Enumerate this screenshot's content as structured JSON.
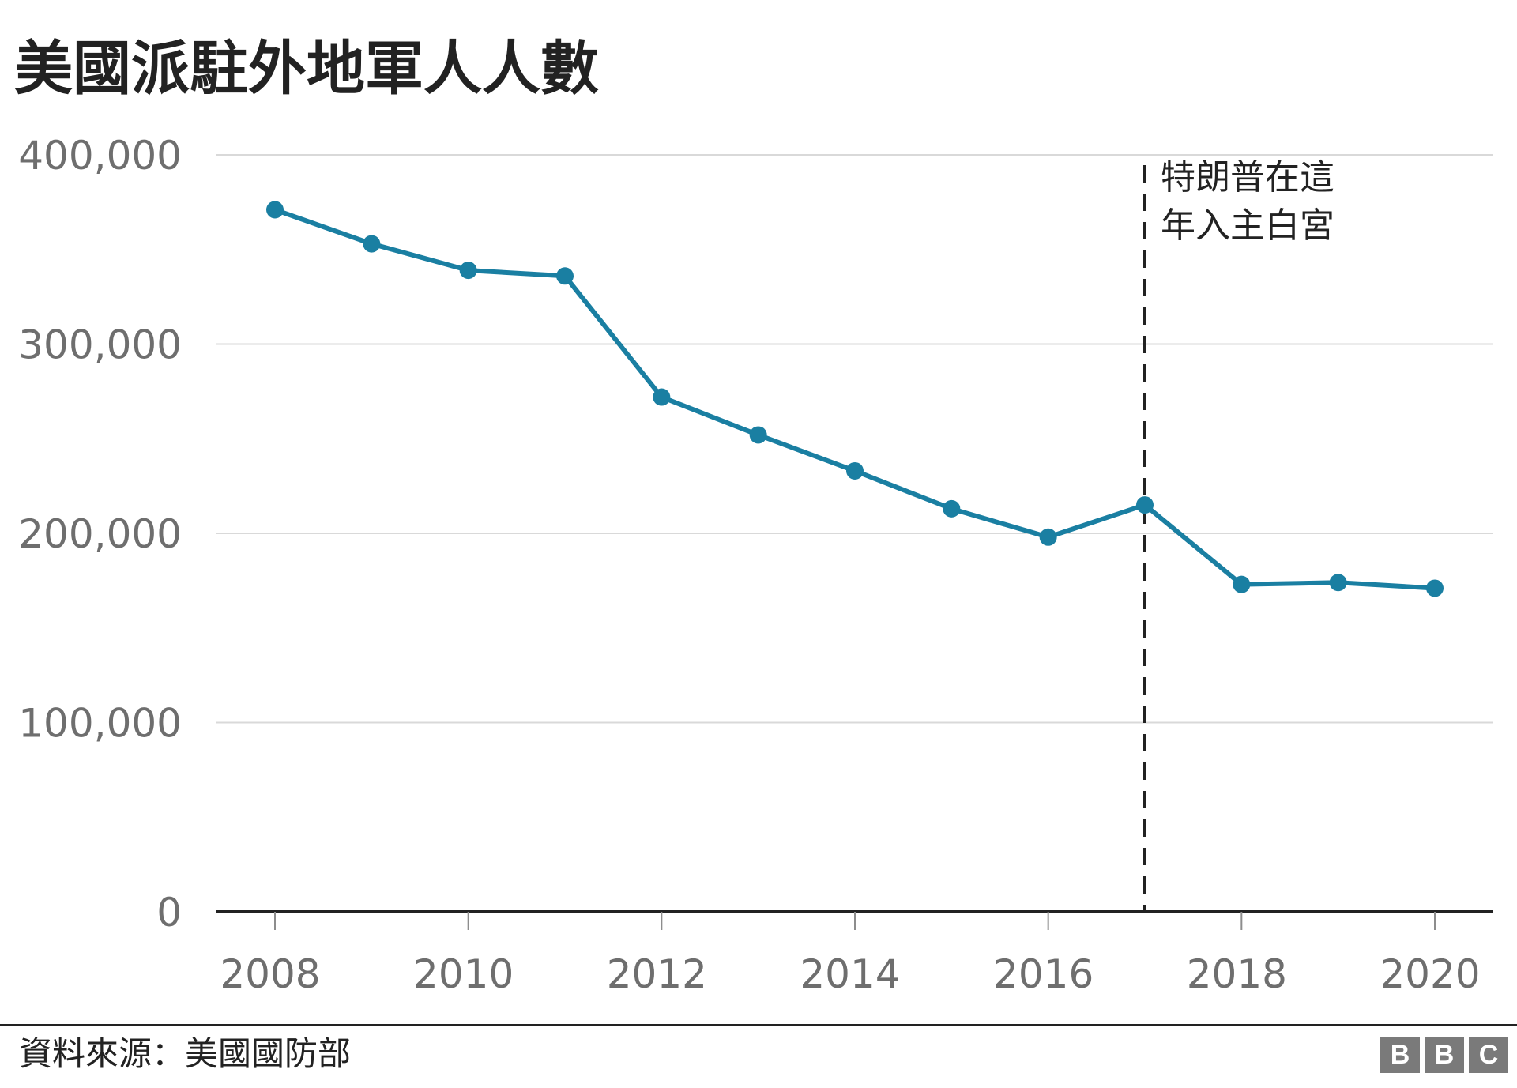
{
  "chart_data": {
    "type": "line",
    "title": "美國派駐外地軍人人數",
    "x": [
      2008,
      2009,
      2010,
      2011,
      2012,
      2013,
      2014,
      2015,
      2016,
      2017,
      2018,
      2019,
      2020
    ],
    "series": [
      {
        "values": [
          371000,
          353000,
          339000,
          336000,
          272000,
          252000,
          233000,
          213000,
          198000,
          215000,
          173000,
          174000,
          171000
        ]
      }
    ],
    "xlim": [
      2008,
      2020
    ],
    "ylim": [
      0,
      400000
    ],
    "x_tick_labels": [
      "2008",
      "2010",
      "2012",
      "2014",
      "2016",
      "2018",
      "2020"
    ],
    "y_tick_labels": [
      "0",
      "100,000",
      "200,000",
      "300,000",
      "400,000"
    ],
    "grid": true,
    "annotation": {
      "x": 2017,
      "lines": [
        "特朗普在這",
        "年入主白宮"
      ]
    },
    "source": "資料來源：美國國防部",
    "colors": {
      "series": "#1a7fa2",
      "grid": "#d9d9d9",
      "axis": "#222222",
      "tick_text": "#6e6e6e",
      "annotation": "#222222"
    }
  },
  "brand": {
    "logo": [
      "B",
      "B",
      "C"
    ]
  }
}
